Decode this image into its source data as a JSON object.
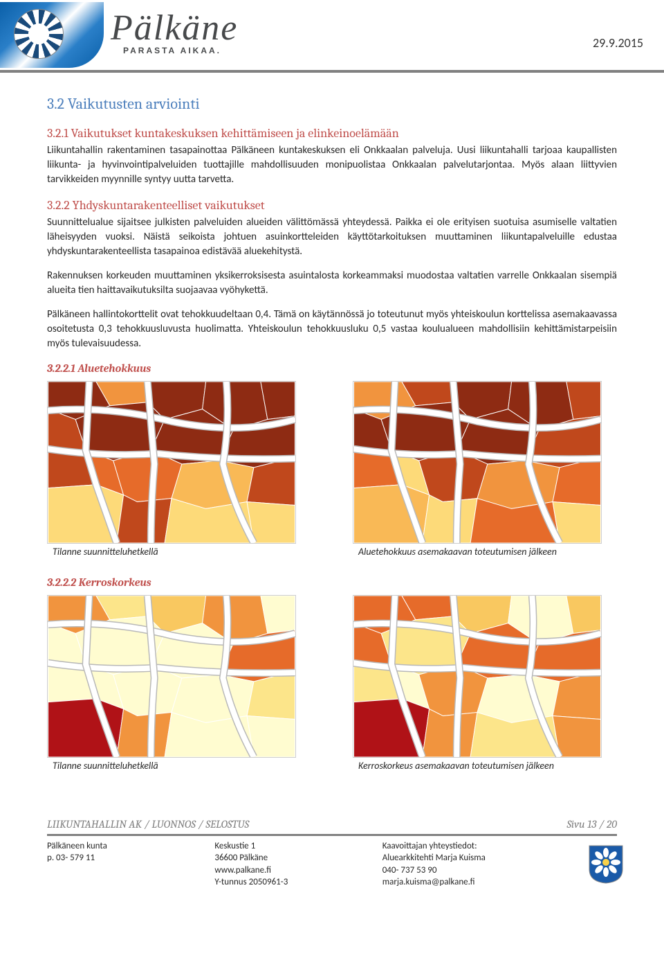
{
  "header": {
    "brand": "Pälkäne",
    "tagline": "PARASTA AIKAA.",
    "date": "29.9.2015"
  },
  "s32": {
    "heading": "3.2 Vaikutusten arviointi"
  },
  "s321": {
    "heading": "3.2.1 Vaikutukset kuntakeskuksen kehittämiseen ja elinkeinoelämään",
    "p1": "Liikuntahallin rakentaminen tasapainottaa Pälkäneen kuntakeskuksen eli Onkkaalan palveluja. Uusi liikuntahalli tarjoaa kaupallisten liikunta- ja hyvinvointipalveluiden tuottajille mahdollisuuden monipuolistaa Onkkaalan palvelutarjontaa. Myös alaan liittyvien tarvikkeiden myynnille syntyy uutta tarvetta."
  },
  "s322": {
    "heading": "3.2.2 Yhdyskuntarakenteelliset vaikutukset",
    "p1": "Suunnittelualue sijaitsee julkisten palveluiden alueiden välittömässä yhteydessä. Paikka ei ole erityisen suotuisa asumiselle valtatien läheisyyden vuoksi. Näistä seikoista johtuen asuinkortteleiden käyttötarkoituksen muuttaminen liikuntapalveluille edustaa yhdyskuntarakenteellista tasapainoa edistävää aluekehitystä.",
    "p2": "Rakennuksen korkeuden muuttaminen yksikerroksisesta asuintalosta korkeammaksi muodostaa valtatien varrelle Onkkaalan sisempiä alueita tien haittavaikutuksilta suojaavaa vyöhykettä.",
    "p3": "Pälkäneen hallintokorttelit ovat tehokkuudeltaan 0,4. Tämä on käytännössä jo toteutunut myös yhteiskoulun korttelissa asemakaavassa osoitetusta 0,3 tehokkuusluvusta huolimatta. Yhteiskoulun tehokkuusluku 0,5 vastaa koulualueen mahdollisiin kehittämistarpeisiin myös tulevaisuudessa."
  },
  "s3221": {
    "heading": "3.2.2.1 Aluetehokkuus",
    "caption_left": "Tilanne suunnitteluhetkellä",
    "caption_right": "Aluetehokkuus asemakaavan toteutumisen jälkeen"
  },
  "s3222": {
    "heading": "3.2.2.2 Kerroskorkeus",
    "caption_left": "Tilanne suunnitteluhetkellä",
    "caption_right": "Kerroskorkeus asemakaavan toteutumisen jälkeen"
  },
  "maps": {
    "aluetehokkuus_palette": [
      "#fdda79",
      "#f9b956",
      "#f1943e",
      "#e66b2a",
      "#c0481c",
      "#8e2b13"
    ],
    "kerroskorkeus_palette": [
      "#fffcd0",
      "#fce58a",
      "#f9c860",
      "#f1943e",
      "#e66b2a",
      "#b01217"
    ],
    "road_color": "#ffffff",
    "road_outline": "#b8b8b8",
    "bg": "#f4f4ee"
  },
  "footer": {
    "title": "LIIKUNTAHALLIN AK / LUONNOS / SELOSTUS",
    "page": "Sivu 13 / 20",
    "col1_l1": "Pälkäneen kunta",
    "col1_l2": "p. 03- 579 11",
    "col2_l1": "Keskustie 1",
    "col2_l2": "36600 Pälkäne",
    "col2_l3": "www.palkane.fi",
    "col2_l4": "Y-tunnus 2050961-3",
    "col3_l1": "Kaavoittajan yhteystiedot:",
    "col3_l2": "Aluearkkitehti Marja Kuisma",
    "col3_l3": "040- 737 53 90",
    "col3_l4": "marja.kuisma@palkane.fi"
  }
}
